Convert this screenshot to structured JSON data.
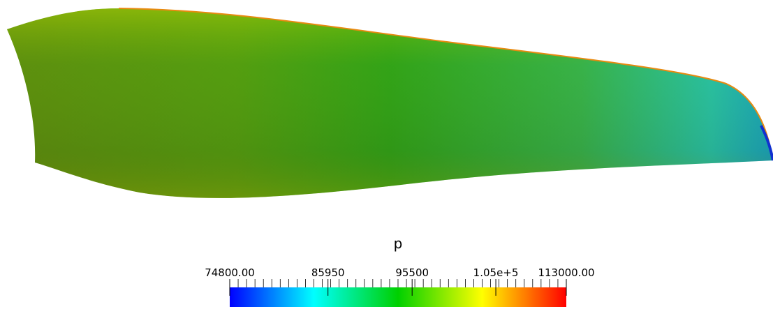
{
  "legend": {
    "title": "p",
    "lim": [
      74800,
      113000
    ],
    "ticks": [
      {
        "value": 74800,
        "label": "74800.00"
      },
      {
        "value": 85950,
        "label": "85950"
      },
      {
        "value": 95500,
        "label": "95500"
      },
      {
        "value": 105000,
        "label": "1.05e+5"
      },
      {
        "value": 113000,
        "label": "113000.00"
      }
    ]
  }
}
